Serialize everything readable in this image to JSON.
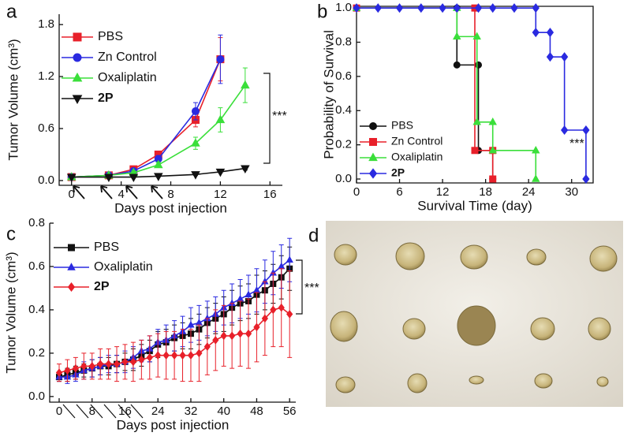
{
  "chart_data": [
    {
      "type": "line",
      "panel_label": "a",
      "x_label": "Days post injection",
      "y_label": "Tumor Volume (cm³)",
      "xlim": [
        -1,
        17
      ],
      "xticks": [
        0,
        4,
        8,
        12,
        16
      ],
      "ylim": [
        -0.055,
        1.92
      ],
      "yticks": [
        {
          "value": 0,
          "label": "0.0"
        },
        0.6,
        1.2,
        1.8
      ],
      "legend": "upper left",
      "annotations": [
        "***"
      ],
      "series": [
        {
          "name": "PBS",
          "color": "#e8202a",
          "marker": "square",
          "x": [
            0,
            3,
            5,
            7,
            10,
            12
          ],
          "values": [
            0.04,
            0.06,
            0.13,
            0.3,
            0.7,
            1.4
          ],
          "errors": [
            0.01,
            0.01,
            0.02,
            0.04,
            0.08,
            0.25
          ]
        },
        {
          "name": "Zn Control",
          "color": "#2a2ae0",
          "marker": "circle",
          "x": [
            0,
            3,
            5,
            7,
            10,
            12
          ],
          "values": [
            0.04,
            0.06,
            0.11,
            0.25,
            0.8,
            1.4
          ],
          "errors": [
            0.01,
            0.01,
            0.02,
            0.04,
            0.1,
            0.28
          ]
        },
        {
          "name": "Oxaliplatin",
          "color": "#3adf3a",
          "marker": "triangle",
          "x": [
            0,
            3,
            5,
            7,
            10,
            12,
            14
          ],
          "values": [
            0.04,
            0.06,
            0.09,
            0.18,
            0.43,
            0.7,
            1.1
          ],
          "errors": [
            0.01,
            0.01,
            0.02,
            0.03,
            0.07,
            0.14,
            0.2
          ]
        },
        {
          "name": "2P",
          "color": "#111111",
          "marker": "triangle-down",
          "x": [
            0,
            3,
            5,
            7,
            10,
            12,
            14
          ],
          "values": [
            0.04,
            0.04,
            0.04,
            0.05,
            0.07,
            0.1,
            0.14
          ],
          "errors": [
            0.01,
            0.01,
            0.01,
            0.01,
            0.01,
            0.01,
            0.02
          ]
        }
      ]
    },
    {
      "type": "line",
      "panel_label": "b",
      "x_label": "Survival Time (day)",
      "y_label": "Probability of Survival",
      "xlim": [
        0,
        33
      ],
      "xticks": [
        0,
        6,
        12,
        18,
        24,
        30
      ],
      "ylim": [
        -0.023,
        1.01
      ],
      "yticks": [
        {
          "value": 0,
          "label": "0.0"
        },
        0.2,
        0.4,
        0.6,
        0.8,
        {
          "value": 1,
          "label": "1.0"
        }
      ],
      "legend": "lower left",
      "annotations": [
        "***"
      ],
      "series": [
        {
          "name": "PBS",
          "color": "#111111",
          "marker": "circle",
          "x": [
            0,
            14,
            14,
            17,
            17,
            19,
            19
          ],
          "values": [
            1,
            1,
            0.667,
            0.667,
            0.167,
            0.167,
            0
          ]
        },
        {
          "name": "Zn Control",
          "color": "#e8202a",
          "marker": "square",
          "x": [
            0,
            16.5,
            16.5,
            19,
            19
          ],
          "values": [
            1,
            1,
            0.167,
            0.167,
            0
          ]
        },
        {
          "name": "Oxaliplatin",
          "color": "#3adf3a",
          "marker": "triangle",
          "x": [
            0,
            14,
            14,
            16.8,
            16.8,
            19,
            19,
            25,
            25
          ],
          "values": [
            1,
            1,
            0.833,
            0.833,
            0.333,
            0.333,
            0.167,
            0.167,
            0
          ]
        },
        {
          "name": "2P",
          "color": "#2a2ae0",
          "marker": "diamond",
          "x": [
            0,
            3,
            6,
            9,
            12,
            14,
            17,
            19,
            22,
            25,
            25,
            27,
            27,
            29,
            29,
            32,
            32
          ],
          "values": [
            1,
            1,
            1,
            1,
            1,
            1,
            1,
            1,
            1,
            1,
            0.857,
            0.857,
            0.714,
            0.714,
            0.286,
            0.286,
            0
          ]
        }
      ]
    },
    {
      "type": "line",
      "panel_label": "c",
      "x_label": "Days post injection",
      "y_label": "Tumor Volume (cm³)",
      "xlim": [
        -2.3,
        57.5
      ],
      "xticks": [
        0,
        8,
        16,
        24,
        32,
        40,
        48,
        56
      ],
      "ylim": [
        -0.026,
        0.8
      ],
      "yticks": [
        {
          "value": 0,
          "label": "0.0"
        },
        0.2,
        0.4,
        0.6,
        0.8
      ],
      "legend": "upper left",
      "annotations": [
        "***"
      ],
      "series": [
        {
          "name": "PBS",
          "color": "#111111",
          "marker": "square",
          "x": [
            0,
            2,
            4,
            6,
            8,
            10,
            12,
            14,
            16,
            18,
            20,
            22,
            24,
            26,
            28,
            30,
            32,
            34,
            36,
            38,
            40,
            42,
            44,
            46,
            48,
            50,
            52,
            54,
            56
          ],
          "values": [
            0.09,
            0.1,
            0.11,
            0.12,
            0.13,
            0.14,
            0.14,
            0.15,
            0.16,
            0.17,
            0.19,
            0.21,
            0.24,
            0.25,
            0.27,
            0.28,
            0.29,
            0.31,
            0.34,
            0.36,
            0.38,
            0.41,
            0.43,
            0.44,
            0.47,
            0.49,
            0.52,
            0.55,
            0.59
          ],
          "errors": [
            0.02,
            0.03,
            0.03,
            0.03,
            0.04,
            0.04,
            0.04,
            0.04,
            0.04,
            0.05,
            0.05,
            0.05,
            0.06,
            0.06,
            0.06,
            0.06,
            0.07,
            0.07,
            0.07,
            0.07,
            0.08,
            0.08,
            0.08,
            0.08,
            0.09,
            0.09,
            0.09,
            0.1,
            0.1
          ]
        },
        {
          "name": "Oxaliplatin",
          "color": "#2a2ae0",
          "marker": "triangle",
          "x": [
            0,
            2,
            4,
            6,
            8,
            10,
            12,
            14,
            16,
            18,
            20,
            22,
            24,
            26,
            28,
            30,
            32,
            34,
            36,
            38,
            40,
            42,
            44,
            46,
            48,
            50,
            52,
            54,
            56
          ],
          "values": [
            0.09,
            0.09,
            0.1,
            0.12,
            0.13,
            0.14,
            0.15,
            0.15,
            0.16,
            0.18,
            0.21,
            0.22,
            0.25,
            0.26,
            0.28,
            0.3,
            0.33,
            0.34,
            0.36,
            0.38,
            0.41,
            0.43,
            0.45,
            0.47,
            0.49,
            0.53,
            0.57,
            0.6,
            0.63
          ],
          "errors": [
            0.02,
            0.03,
            0.03,
            0.04,
            0.04,
            0.04,
            0.04,
            0.04,
            0.05,
            0.05,
            0.05,
            0.06,
            0.06,
            0.07,
            0.07,
            0.07,
            0.08,
            0.08,
            0.08,
            0.08,
            0.08,
            0.09,
            0.09,
            0.09,
            0.1,
            0.1,
            0.1,
            0.1,
            0.1
          ]
        },
        {
          "name": "2P",
          "color": "#e8202a",
          "marker": "diamond",
          "x": [
            0,
            2,
            4,
            6,
            8,
            10,
            12,
            14,
            16,
            18,
            20,
            22,
            24,
            26,
            28,
            30,
            32,
            34,
            36,
            38,
            40,
            42,
            44,
            46,
            48,
            50,
            52,
            54,
            56
          ],
          "values": [
            0.11,
            0.12,
            0.13,
            0.14,
            0.14,
            0.15,
            0.15,
            0.15,
            0.16,
            0.16,
            0.17,
            0.18,
            0.19,
            0.19,
            0.19,
            0.19,
            0.19,
            0.2,
            0.23,
            0.26,
            0.28,
            0.28,
            0.29,
            0.29,
            0.32,
            0.36,
            0.4,
            0.41,
            0.38
          ],
          "errors": [
            0.04,
            0.05,
            0.05,
            0.06,
            0.06,
            0.07,
            0.07,
            0.08,
            0.08,
            0.09,
            0.09,
            0.1,
            0.1,
            0.11,
            0.11,
            0.12,
            0.12,
            0.13,
            0.13,
            0.14,
            0.14,
            0.15,
            0.15,
            0.16,
            0.16,
            0.17,
            0.17,
            0.18,
            0.2
          ]
        }
      ]
    }
  ],
  "photo": {
    "panel_label": "d"
  }
}
